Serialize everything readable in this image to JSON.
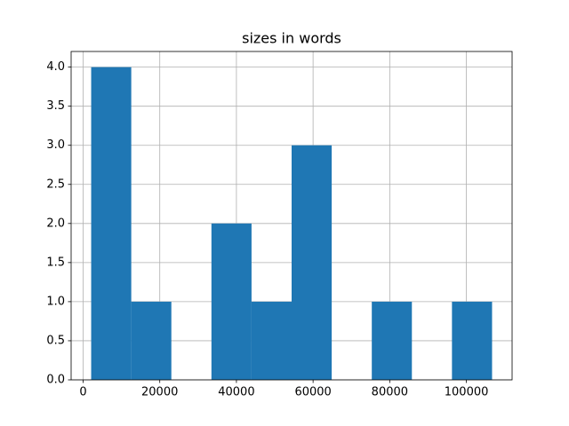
{
  "chart_data": {
    "type": "histogram",
    "title": "sizes in words",
    "bins": [
      2100,
      12560,
      23020,
      33480,
      43940,
      54400,
      64860,
      75320,
      85780,
      96240,
      106700
    ],
    "values": [
      4,
      1,
      0,
      2,
      1,
      3,
      0,
      1,
      0,
      1
    ],
    "color": "#1f77b4",
    "xlim": [
      -3130,
      111930
    ],
    "xticks": [
      0,
      20000,
      40000,
      60000,
      80000,
      100000
    ],
    "ylim": [
      0,
      4.2
    ],
    "yticks": [
      {
        "value": 0,
        "label": "0.0"
      },
      {
        "value": 0.5,
        "label": "0.5"
      },
      {
        "value": 1,
        "label": "1.0"
      },
      {
        "value": 1.5,
        "label": "1.5"
      },
      {
        "value": 2,
        "label": "2.0"
      },
      {
        "value": 2.5,
        "label": "2.5"
      },
      {
        "value": 3,
        "label": "3.0"
      },
      {
        "value": 3.5,
        "label": "3.5"
      },
      {
        "value": 4,
        "label": "4.0"
      }
    ],
    "grid": true
  }
}
